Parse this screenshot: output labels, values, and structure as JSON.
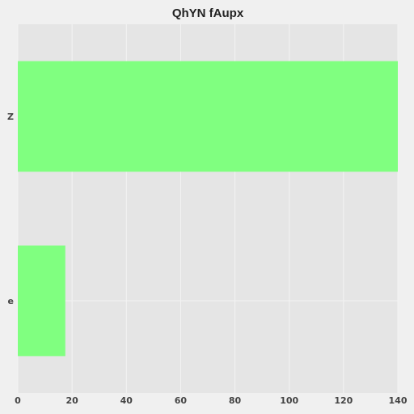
{
  "chart_data": {
    "type": "bar",
    "orientation": "horizontal",
    "title": "QhYN fAupx",
    "categories": [
      "Z",
      "e"
    ],
    "values": [
      140,
      17.5
    ],
    "xlabel": "",
    "ylabel": "",
    "xlim": [
      0,
      140
    ],
    "xticks": [
      0,
      20,
      40,
      60,
      80,
      100,
      120,
      140
    ],
    "grid": true,
    "bar_color": "#80ff80",
    "plot_background": "#e5e5e5",
    "figure_background": "#f0f0f0",
    "grid_color": "#f3f3f3"
  }
}
